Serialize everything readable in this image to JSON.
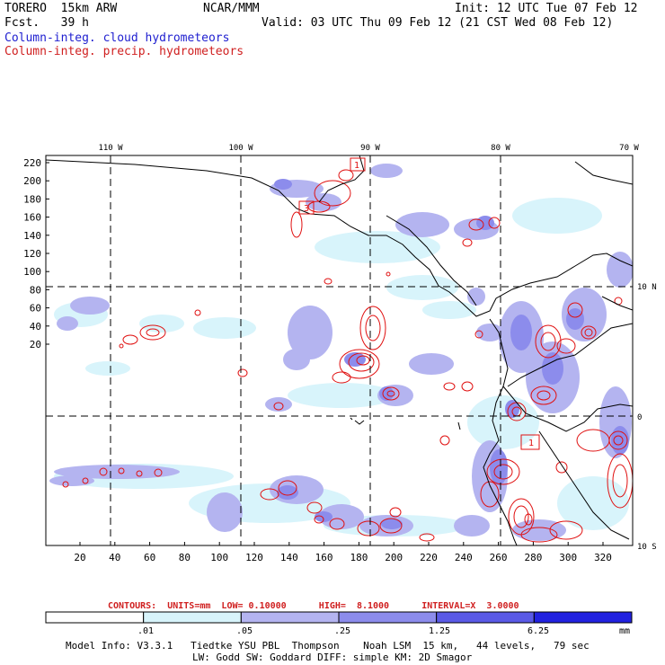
{
  "header": {
    "model": "TORERO  15km ARW",
    "org": "NCAR/MMM",
    "init": "Init: 12 UTC Tue 07 Feb 12",
    "fcst": "Fcst.   39 h",
    "valid": "Valid: 03 UTC Thu 09 Feb 12 (21 CST Wed 08 Feb 12)",
    "legend_cloud": "Column-integ. cloud hydrometeors",
    "legend_precip": "Column-integ. precip. hydrometeors"
  },
  "map": {
    "lon_labels": [
      "110 W",
      "100 W",
      "90 W",
      "80 W",
      "70 W"
    ],
    "lat_labels": [
      "10 N",
      "0",
      "10 S"
    ],
    "y_ticks": [
      "220",
      "200",
      "180",
      "160",
      "140",
      "120",
      "100",
      "80",
      "60",
      "40",
      "20"
    ],
    "x_ticks": [
      "20",
      "40",
      "60",
      "80",
      "100",
      "120",
      "140",
      "160",
      "180",
      "200",
      "220",
      "240",
      "260",
      "280",
      "300",
      "320"
    ],
    "box_labels": [
      "1",
      "3",
      "1"
    ]
  },
  "contours_line": "CONTOURS:  UNITS=mm  LOW= 0.10000      HIGH=  8.1000      INTERVAL=X  3.0000",
  "colorbar": {
    "labels": [
      ".01",
      ".05",
      ".25",
      "1.25",
      "6.25"
    ],
    "unit": "mm",
    "colors": [
      "#ffffff",
      "#d8f4fb",
      "#b4b4f0",
      "#8c8cec",
      "#5a5ae6",
      "#2222e0"
    ]
  },
  "footer": {
    "line1": "Model Info: V3.3.1   Tiedtke YSU PBL  Thompson    Noah LSM  15 km,   44 levels,   79 sec",
    "line2": "LW: Godd SW: Goddard DIFF: simple KM: 2D Smagor"
  }
}
